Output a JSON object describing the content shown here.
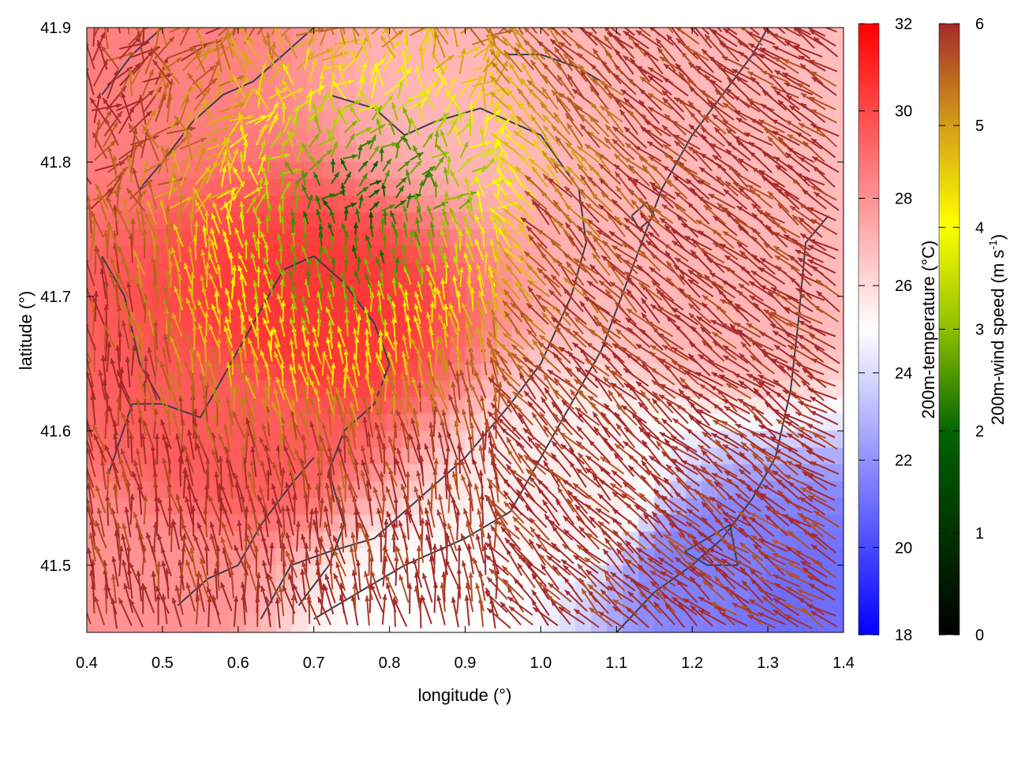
{
  "chart_data": {
    "type": "heatmap",
    "title": "",
    "xlabel": "longitude (°)",
    "ylabel": "latitude (°)",
    "xlim": [
      0.4,
      1.4
    ],
    "ylim": [
      41.45,
      41.9
    ],
    "x_ticks": [
      "0.4",
      "0.5",
      "0.6",
      "0.7",
      "0.8",
      "0.9",
      "1.0",
      "1.1",
      "1.2",
      "1.3",
      "1.4"
    ],
    "y_ticks": [
      "41.5",
      "41.6",
      "41.7",
      "41.8",
      "41.9"
    ],
    "temperature_colorbar": {
      "label": "200m-temperature (°C)",
      "range": [
        18,
        32
      ],
      "ticks": [
        "18",
        "20",
        "22",
        "24",
        "26",
        "28",
        "30",
        "32"
      ],
      "colors": [
        "#0000ff",
        "#ffffff",
        "#ff0000"
      ]
    },
    "wind_colorbar": {
      "label": "200m-wind speed (m s",
      "label_sup": "-1",
      "label_tail": ")",
      "range": [
        0,
        6
      ],
      "ticks": [
        "0",
        "1",
        "2",
        "3",
        "4",
        "5",
        "6"
      ],
      "colors": [
        "#000000",
        "#006400",
        "#8fbf00",
        "#ffff00",
        "#d4a017",
        "#a52a2a"
      ]
    },
    "temperature_field": {
      "description_points": [
        {
          "lon": 0.42,
          "lat": 41.88,
          "t": 28.5
        },
        {
          "lon": 0.7,
          "lat": 41.68,
          "t": 30.5
        },
        {
          "lon": 0.6,
          "lat": 41.6,
          "t": 29.5
        },
        {
          "lon": 0.95,
          "lat": 41.85,
          "t": 27.0
        },
        {
          "lon": 1.25,
          "lat": 41.7,
          "t": 27.0
        },
        {
          "lon": 1.22,
          "lat": 41.5,
          "t": 21.5
        },
        {
          "lon": 1.35,
          "lat": 41.47,
          "t": 21.0
        },
        {
          "lon": 1.05,
          "lat": 41.55,
          "t": 25.5
        },
        {
          "lon": 0.45,
          "lat": 41.48,
          "t": 28.0
        },
        {
          "lon": 0.85,
          "lat": 41.46,
          "t": 25.0
        }
      ]
    },
    "wind_regions": [
      {
        "region": "north-central",
        "speed": 2.5,
        "direction": "north-east"
      },
      {
        "region": "central",
        "speed": 3.8,
        "direction": "north"
      },
      {
        "region": "south & east",
        "speed": 6.0,
        "direction": "north-west"
      }
    ]
  }
}
